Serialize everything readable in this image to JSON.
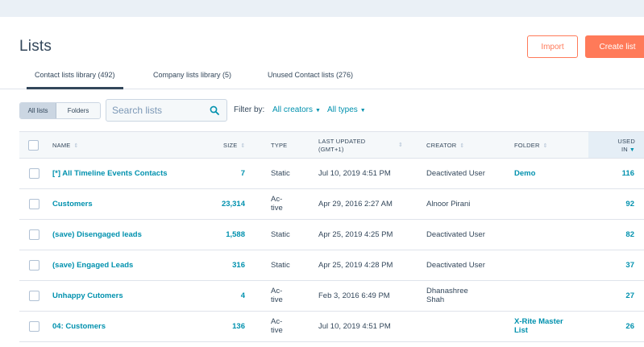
{
  "header": {
    "title": "Lists",
    "import_label": "Import",
    "create_label": "Create list"
  },
  "tabs": [
    {
      "label": "Contact lists library (492)",
      "active": true
    },
    {
      "label": "Company lists library (5)",
      "active": false
    },
    {
      "label": "Unused Contact lists (276)",
      "active": false
    }
  ],
  "toolbar": {
    "view_toggle": [
      "All lists",
      "Folders"
    ],
    "search_placeholder": "Search lists",
    "filter_label": "Filter by:",
    "creator_filter": "All creators",
    "type_filter": "All types"
  },
  "table": {
    "columns": {
      "name": "NAME",
      "size": "SIZE",
      "type": "TYPE",
      "last_updated_1": "LAST UPDATED",
      "last_updated_2": "(GMT+1)",
      "creator": "CREATOR",
      "folder": "FOLDER",
      "used_in_1": "USED",
      "used_in_2": "IN"
    },
    "rows": [
      {
        "name": "[*] All Timeline Events Contacts",
        "size": "7",
        "type": "Static",
        "type_2": "",
        "updated": "Jul 10, 2019 4:51 PM",
        "creator": "Deactivated User",
        "creator_2": "",
        "folder": "Demo",
        "folder_2": "",
        "used_in": "116"
      },
      {
        "name": "Customers",
        "size": "23,314",
        "type": "Ac-",
        "type_2": "tive",
        "updated": "Apr 29, 2016 2:27 AM",
        "creator": "Alnoor Pirani",
        "creator_2": "",
        "folder": "",
        "folder_2": "",
        "used_in": "92"
      },
      {
        "name": "(save) Disengaged leads",
        "size": "1,588",
        "type": "Static",
        "type_2": "",
        "updated": "Apr 25, 2019 4:25 PM",
        "creator": "Deactivated User",
        "creator_2": "",
        "folder": "",
        "folder_2": "",
        "used_in": "82"
      },
      {
        "name": "(save) Engaged Leads",
        "size": "316",
        "type": "Static",
        "type_2": "",
        "updated": "Apr 25, 2019 4:28 PM",
        "creator": "Deactivated User",
        "creator_2": "",
        "folder": "",
        "folder_2": "",
        "used_in": "37"
      },
      {
        "name": "Unhappy Cutomers",
        "size": "4",
        "type": "Ac-",
        "type_2": "tive",
        "updated": "Feb 3, 2016 6:49 PM",
        "creator": "Dhanashree",
        "creator_2": "Shah",
        "folder": "",
        "folder_2": "",
        "used_in": "27"
      },
      {
        "name": "04: Customers",
        "size": "136",
        "type": "Ac-",
        "type_2": "tive",
        "updated": "Jul 10, 2019 4:51 PM",
        "creator": "",
        "creator_2": "",
        "folder": "X-Rite Master",
        "folder_2": "List",
        "used_in": "26"
      }
    ]
  },
  "colors": {
    "accent": "#ff7a59",
    "link": "#0091ae",
    "text": "#33475b",
    "border": "#dfe3eb",
    "header_bg": "#f5f8fa"
  }
}
